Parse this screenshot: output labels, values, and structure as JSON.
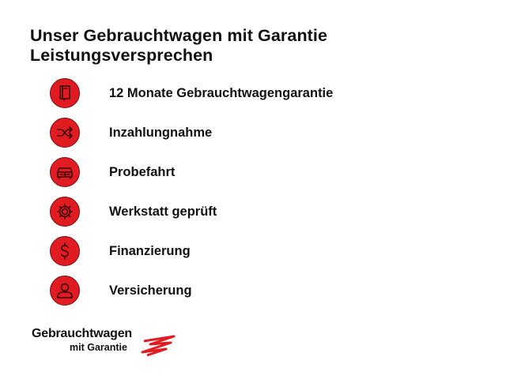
{
  "header": {
    "title_line1": "Unser Gebrauchtwagen mit Garantie",
    "title_line2": "Leistungsversprechen"
  },
  "accent_color": "#e01b22",
  "items": [
    {
      "label": "12 Monate Gebrauchtwagengarantie",
      "icon": "document-icon"
    },
    {
      "label": "Inzahlungnahme",
      "icon": "shuffle-icon"
    },
    {
      "label": "Probefahrt",
      "icon": "car-icon"
    },
    {
      "label": "Werkstatt geprüft",
      "icon": "gear-icon"
    },
    {
      "label": "Finanzierung",
      "icon": "dollar-icon"
    },
    {
      "label": "Versicherung",
      "icon": "person-icon"
    }
  ],
  "logo": {
    "line1": "Gebrauchtwagen",
    "line2": "mit Garantie"
  }
}
